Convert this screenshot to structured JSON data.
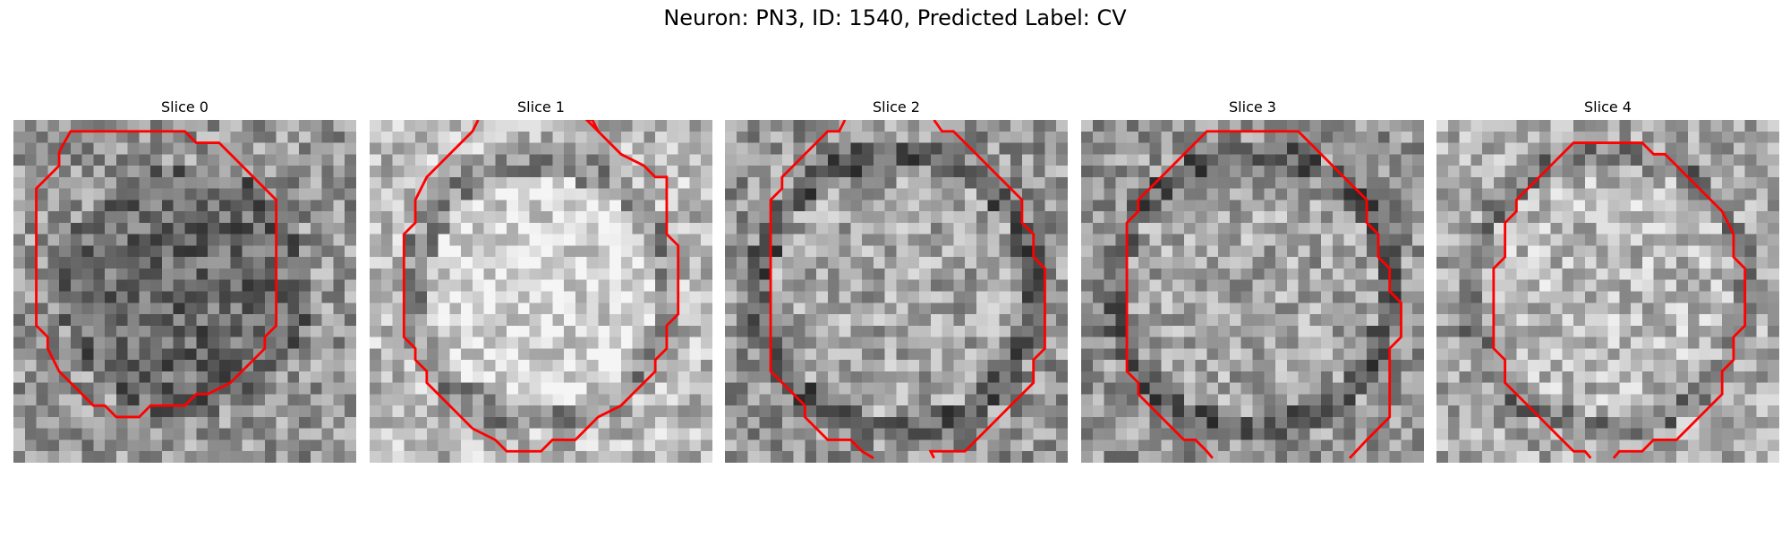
{
  "figure": {
    "title": "Neuron: PN3, ID: 1540, Predicted Label: CV",
    "contour_color": "#ff0000"
  },
  "slices": [
    {
      "title": "Slice 0",
      "tone": "dark"
    },
    {
      "title": "Slice 1",
      "tone": "bright"
    },
    {
      "title": "Slice 2",
      "tone": "mid"
    },
    {
      "title": "Slice 3",
      "tone": "mid"
    },
    {
      "title": "Slice 4",
      "tone": "light"
    }
  ]
}
